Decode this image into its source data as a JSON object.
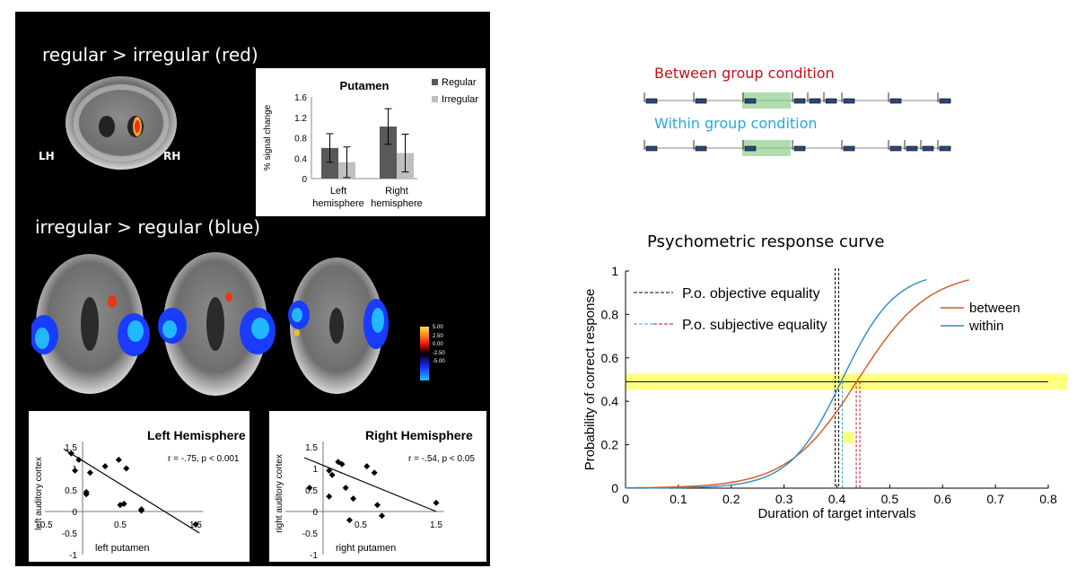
{
  "left_panel": {
    "heading_top": "regular > irregular (red)",
    "heading_mid": "irregular > regular (blue)",
    "brain_labels": {
      "left": "LH",
      "right": "RH"
    },
    "colorbar_labels": [
      "5.00",
      "2.50",
      "0.00",
      "-2.50",
      "-5.00"
    ]
  },
  "timelines": {
    "between_label": "Between group condition",
    "within_label": "Within group condition",
    "colors": {
      "between": "#c0121a",
      "within": "#25a9e0"
    }
  },
  "chart_data": [
    {
      "type": "bar",
      "title": "Putamen",
      "ylabel": "% signal change",
      "categories": [
        "Left hemisphere",
        "Right hemisphere"
      ],
      "series": [
        {
          "name": "Regular",
          "values": [
            0.6,
            1.02
          ],
          "errors": [
            0.28,
            0.35
          ],
          "color": "#595959"
        },
        {
          "name": "Irregular",
          "values": [
            0.32,
            0.5
          ],
          "errors": [
            0.3,
            0.37
          ],
          "color": "#bfbfbf"
        }
      ],
      "ylim": [
        0,
        1.6
      ],
      "yticks": [
        "0",
        "0.4",
        "0.8",
        "1.2",
        "1.6"
      ],
      "legend_position": "top-right"
    },
    {
      "type": "scatter",
      "title": "Left Hemisphere",
      "xlabel": "left putamen",
      "ylabel": "left auditory cortex",
      "annotation": "r = -.75, p < 0.001",
      "points": [
        [
          -0.15,
          1.35
        ],
        [
          -0.05,
          1.2
        ],
        [
          -0.1,
          0.95
        ],
        [
          0.05,
          0.45
        ],
        [
          0.05,
          0.4
        ],
        [
          0.1,
          0.9
        ],
        [
          0.3,
          1.05
        ],
        [
          0.48,
          1.2
        ],
        [
          0.58,
          1.0
        ],
        [
          0.5,
          0.15
        ],
        [
          0.55,
          0.18
        ],
        [
          0.78,
          0.02
        ],
        [
          0.78,
          0.05
        ],
        [
          1.5,
          -0.3
        ]
      ],
      "fit": [
        [
          -0.25,
          1.45
        ],
        [
          1.55,
          -0.5
        ]
      ],
      "xlim": [
        -0.5,
        1.6
      ],
      "ylim": [
        -1,
        1.5
      ],
      "xticks": [
        "-0.5",
        "0.5",
        "1.5"
      ],
      "yticks": [
        "-1",
        "-0.5",
        "0",
        "0.5",
        "1",
        "1.5"
      ]
    },
    {
      "type": "scatter",
      "title": "Right Hemisphere",
      "xlabel": "right putamen",
      "ylabel": "right auditory cortex",
      "annotation": "r = -.54, p < 0.05",
      "points": [
        [
          -0.18,
          0.55
        ],
        [
          0.08,
          0.95
        ],
        [
          0.08,
          0.35
        ],
        [
          0.12,
          0.85
        ],
        [
          0.2,
          1.15
        ],
        [
          0.25,
          1.1
        ],
        [
          0.3,
          0.55
        ],
        [
          0.4,
          0.3
        ],
        [
          0.35,
          -0.2
        ],
        [
          0.58,
          1.05
        ],
        [
          0.68,
          0.9
        ],
        [
          0.72,
          0.15
        ],
        [
          0.78,
          -0.1
        ],
        [
          1.5,
          0.2
        ]
      ],
      "fit": [
        [
          -0.25,
          1.25
        ],
        [
          1.5,
          0
        ]
      ],
      "xlim": [
        -0.5,
        1.6
      ],
      "ylim": [
        -1,
        1.5
      ],
      "xticks": [
        "0.5",
        "1.5"
      ],
      "yticks": [
        "-1",
        "-0.5",
        "0",
        "0.5",
        "1",
        "1.5"
      ]
    },
    {
      "type": "line",
      "title": "Psychometric response curve",
      "xlabel": "Duration of target intervals",
      "ylabel": "Probability of correct response",
      "xlim": [
        0,
        0.8
      ],
      "ylim": [
        0,
        1
      ],
      "xticks": [
        "0",
        "0.1",
        "0.2",
        "0.3",
        "0.4",
        "0.5",
        "0.6",
        "0.7",
        "0.8"
      ],
      "yticks": [
        "0",
        "0.2",
        "0.4",
        "0.6",
        "0.8",
        "1"
      ],
      "series": [
        {
          "name": "between",
          "color": "#d9541e",
          "pse": 0.44,
          "slope": 15,
          "xmax": 0.65
        },
        {
          "name": "within",
          "color": "#2e8bbd",
          "pse": 0.41,
          "slope": 20,
          "xmax": 0.57
        }
      ],
      "legend_position": "top-right",
      "annotations": {
        "objective_label": "P.o. objective equality",
        "subjective_label": "P.o. subjective equality",
        "objective_x": 0.4,
        "subjective_within_x": 0.41,
        "subjective_between_x": 0.44,
        "reference_y": 0.49,
        "highlight_color": "#ffff80"
      }
    }
  ]
}
